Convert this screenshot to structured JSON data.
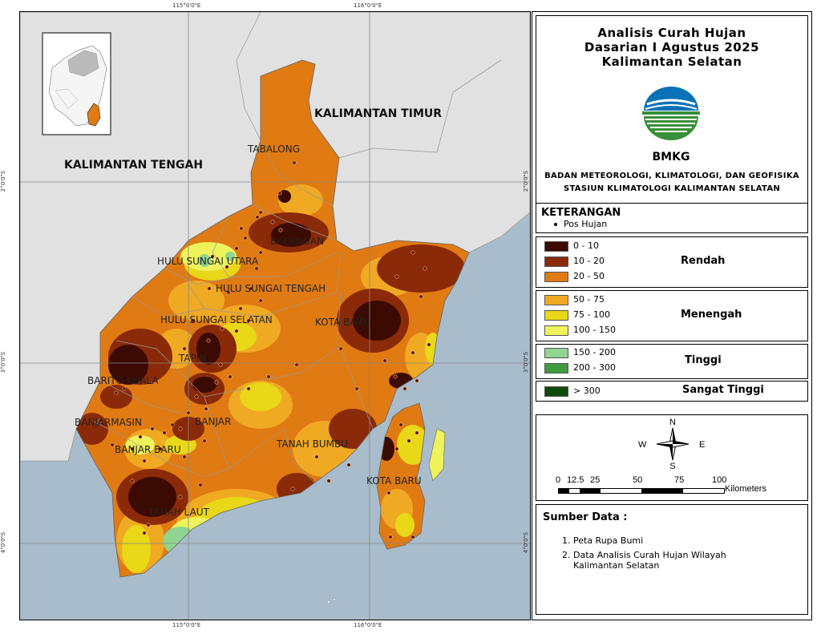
{
  "map": {
    "regions": {
      "kalteng": "KALIMANTAN TENGAH",
      "kaltim": "KALIMANTAN TIMUR"
    },
    "districts": {
      "tabalong": "TABALONG",
      "balangan": "BALANGAN",
      "hsu": "HULU SUNGAI UTARA",
      "hst": "HULU SUNGAI TENGAH",
      "hss": "HULU SUNGAI SELATAN",
      "kotabaru1": "KOTA BARU",
      "tapin": "TAPIN",
      "baritokuala": "BARITO KUALA",
      "banjarmasin": "BANJARMASIN",
      "banjar": "BANJAR",
      "banjarbaru": "BANJAR BARU",
      "tanahbumbu": "TANAH BUMBU",
      "kotabaru2": "KOTA BARU",
      "tanahlaut": "TANAH LAUT"
    },
    "grid": {
      "lon1": "115°0'0\"E",
      "lon2": "116°0'0\"E",
      "lat1": "2°0'0\"S",
      "lat2": "3°0'0\"S",
      "lat3": "4°0'0\"S"
    },
    "colors": {
      "sea": "#a8bccb",
      "land_other": "#e1e1e1",
      "base": "#e07a12"
    }
  },
  "title": {
    "line1": "Analisis Curah Hujan",
    "line2": "Dasarian I Agustus 2025",
    "line3": "Kalimantan Selatan"
  },
  "agency": {
    "logo_text": "BMKG",
    "line1": "BADAN METEOROLOGI, KLIMATOLOGI, DAN GEOFISIKA",
    "line2": "STASIUN KLIMATOLOGI KALIMANTAN SELATAN"
  },
  "legend": {
    "heading": "KETERANGAN",
    "pos_label": "Pos Hujan",
    "groups": [
      {
        "name": "Rendah",
        "items": [
          {
            "label": "0 - 10",
            "color": "#3b0a03"
          },
          {
            "label": "10 - 20",
            "color": "#8a2a08"
          },
          {
            "label": "20 - 50",
            "color": "#e07a12"
          }
        ]
      },
      {
        "name": "Menengah",
        "items": [
          {
            "label": "50 - 75",
            "color": "#f0a923"
          },
          {
            "label": "75 - 100",
            "color": "#e8d818"
          },
          {
            "label": "100 - 150",
            "color": "#eef35c"
          }
        ]
      },
      {
        "name": "Tinggi",
        "items": [
          {
            "label": "150 - 200",
            "color": "#8fd48f"
          },
          {
            "label": "200 - 300",
            "color": "#3f9b3f"
          }
        ]
      },
      {
        "name": "Sangat Tinggi",
        "items": [
          {
            "label": "> 300",
            "color": "#0b4a0b"
          }
        ]
      }
    ]
  },
  "compass": {
    "n": "N",
    "s": "S",
    "e": "E",
    "w": "W"
  },
  "scale": {
    "ticks": [
      "0",
      "12.5",
      "25",
      "50",
      "75",
      "100"
    ],
    "unit": "Kilometers"
  },
  "sources": {
    "heading": "Sumber Data :",
    "items": [
      "1. Peta Rupa Bumi",
      "2. Data Analisis Curah Hujan Wilayah",
      "Kalimantan Selatan"
    ]
  }
}
